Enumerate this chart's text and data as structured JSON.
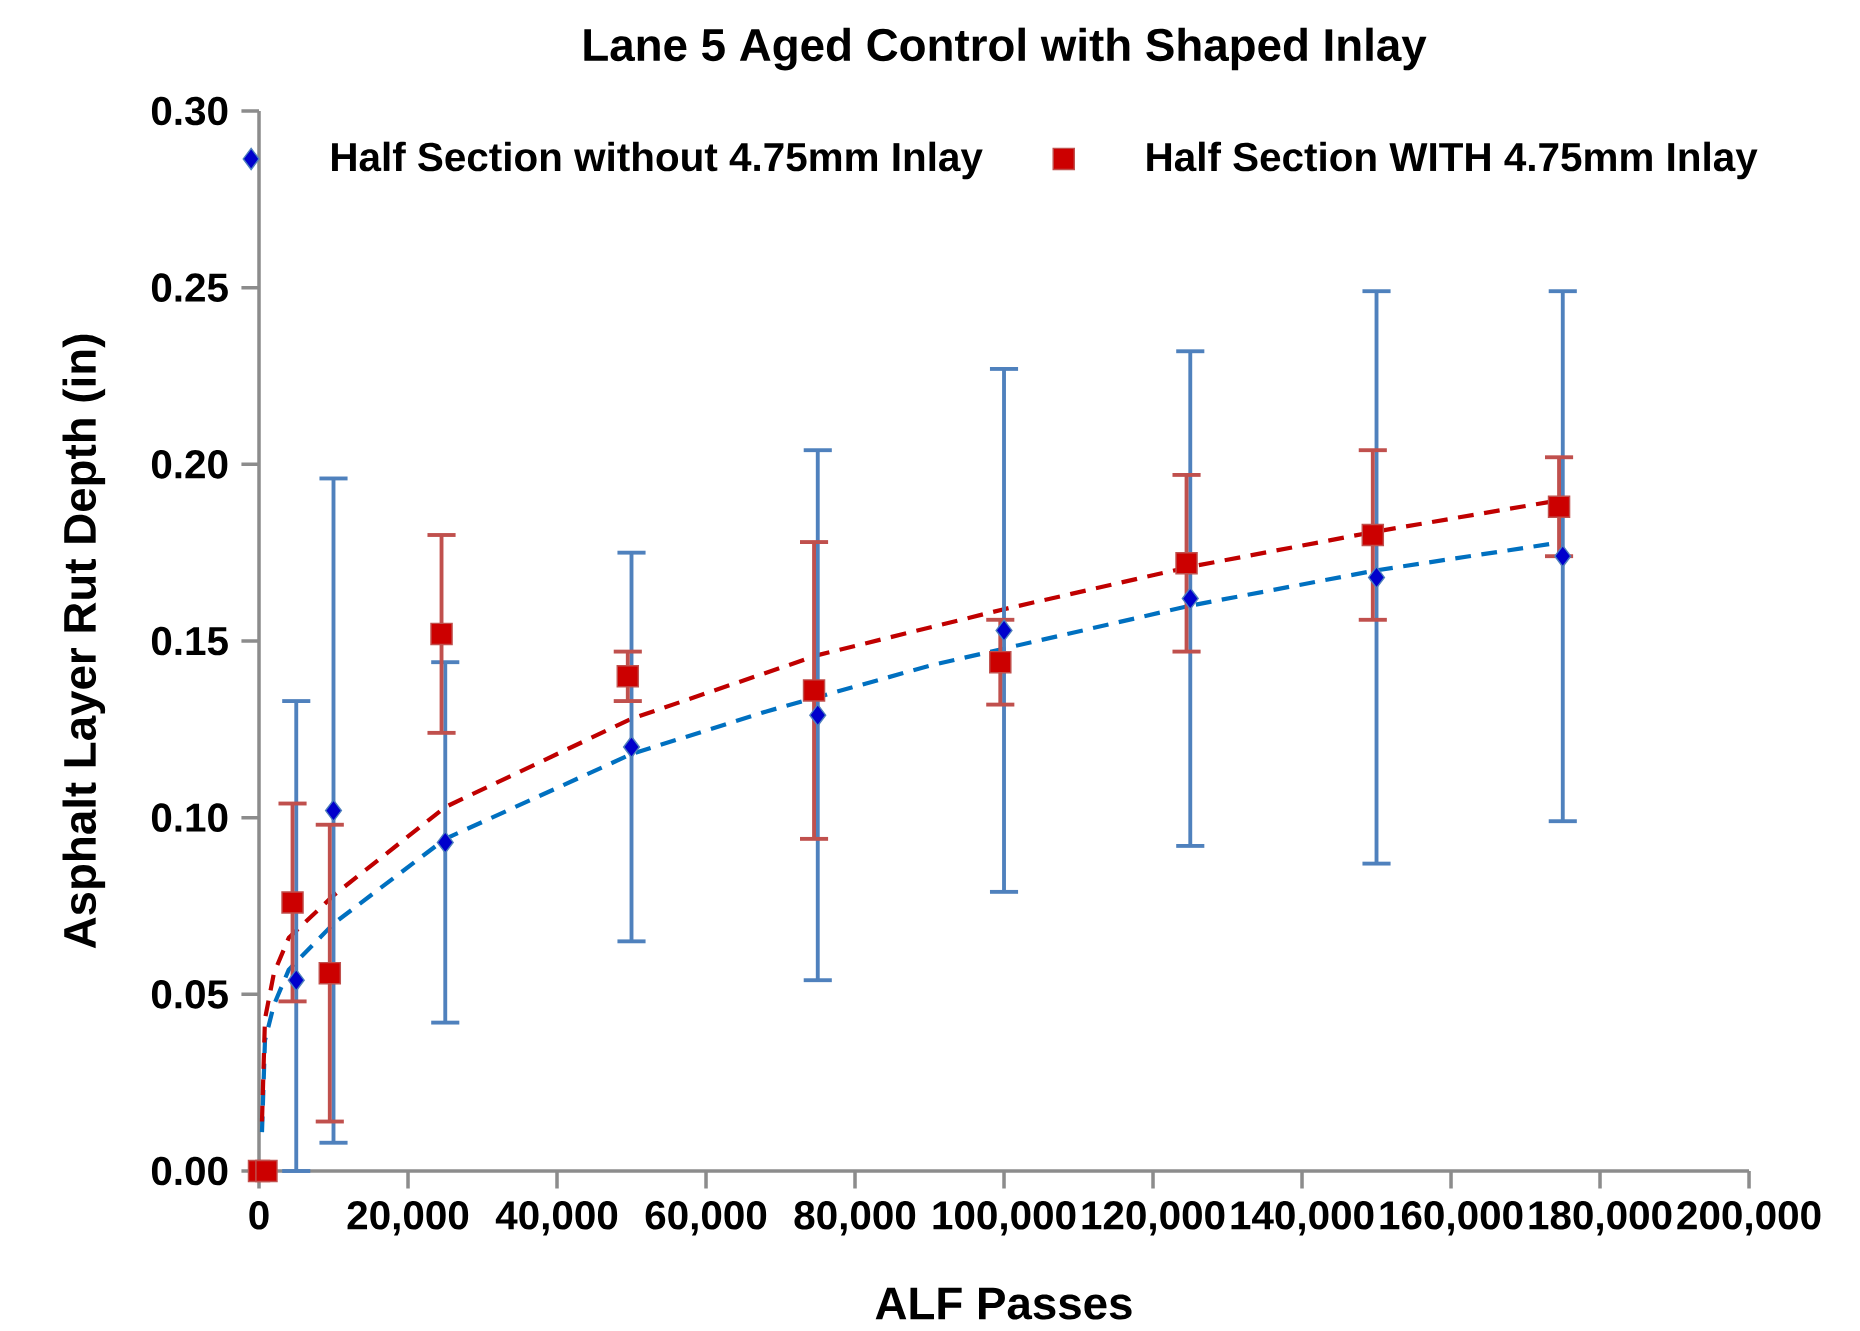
{
  "chart_data": {
    "type": "scatter",
    "title": "Lane 5 Aged Control with Shaped Inlay",
    "xlabel": "ALF Passes",
    "ylabel": "Asphalt Layer Rut Depth (in)",
    "xlim": [
      0,
      200000
    ],
    "ylim": [
      0,
      0.3
    ],
    "xticks": [
      0,
      {
        "value": 20000,
        "label": "20,000"
      },
      {
        "value": 40000,
        "label": "40,000"
      },
      {
        "value": 60000,
        "label": "60,000"
      },
      {
        "value": 80000,
        "label": "80,000"
      },
      {
        "value": 100000,
        "label": "100,000"
      },
      {
        "value": 120000,
        "label": "120,000"
      },
      {
        "value": 140000,
        "label": "140,000"
      },
      {
        "value": 160000,
        "label": "160,000"
      },
      {
        "value": 180000,
        "label": "180,000"
      },
      {
        "value": 200000,
        "label": "200,000"
      }
    ],
    "yticks": [
      {
        "value": 0,
        "label": "0.00"
      },
      0.05,
      {
        "value": 0.1,
        "label": "0.10"
      },
      0.15,
      {
        "value": 0.2,
        "label": "0.20"
      },
      0.25,
      {
        "value": 0.3,
        "label": "0.30"
      }
    ],
    "grid": false,
    "legend": "top",
    "series": [
      {
        "name": "Half Section without 4.75mm Inlay",
        "color": "#4f81bd",
        "marker": "diamond",
        "x": [
          5000,
          10000,
          25000,
          50000,
          75000,
          100000,
          125000,
          150000,
          175000
        ],
        "values": [
          0.054,
          0.102,
          0.093,
          0.12,
          0.129,
          0.153,
          0.162,
          0.168,
          0.174
        ],
        "errors": [
          [
            0,
            0.133
          ],
          0.094,
          0.051,
          0.055,
          0.075,
          0.074,
          0.07,
          0.081,
          0.075
        ]
      },
      {
        "name": "Half Section WITH 4.75mm Inlay",
        "color": "#c0504d",
        "marker": "square",
        "x": [
          0,
          1000,
          4500,
          9500,
          24500,
          49500,
          74500,
          99500,
          124500,
          149500,
          174500
        ],
        "values": [
          0,
          0,
          0.076,
          0.056,
          0.152,
          0.14,
          0.136,
          0.144,
          0.172,
          0.18,
          0.188
        ],
        "errors": [
          null,
          null,
          0.028,
          0.042,
          0.028,
          0.007,
          0.042,
          0.012,
          0.025,
          0.024,
          0.014
        ]
      },
      {
        "type": "line",
        "color": "#0070c0",
        "marker": "none",
        "line_style": "dashed",
        "x": [
          400,
          800,
          2000,
          4000,
          10000,
          25000,
          50000,
          68000,
          90000,
          125000,
          150000,
          175000
        ],
        "values": [
          0.011,
          0.037,
          0.047,
          0.057,
          0.07,
          0.094,
          0.118,
          0.13,
          0.143,
          0.16,
          0.17,
          0.178
        ]
      },
      {
        "type": "line",
        "color": "#c00000",
        "marker": "none",
        "line_style": "dashed",
        "x": [
          400,
          800,
          2000,
          4000,
          10000,
          25000,
          50000,
          75000,
          100000,
          125000,
          150000,
          175000
        ],
        "values": [
          0.014,
          0.043,
          0.056,
          0.066,
          0.078,
          0.103,
          0.128,
          0.146,
          0.159,
          0.171,
          0.181,
          0.19
        ]
      }
    ]
  }
}
